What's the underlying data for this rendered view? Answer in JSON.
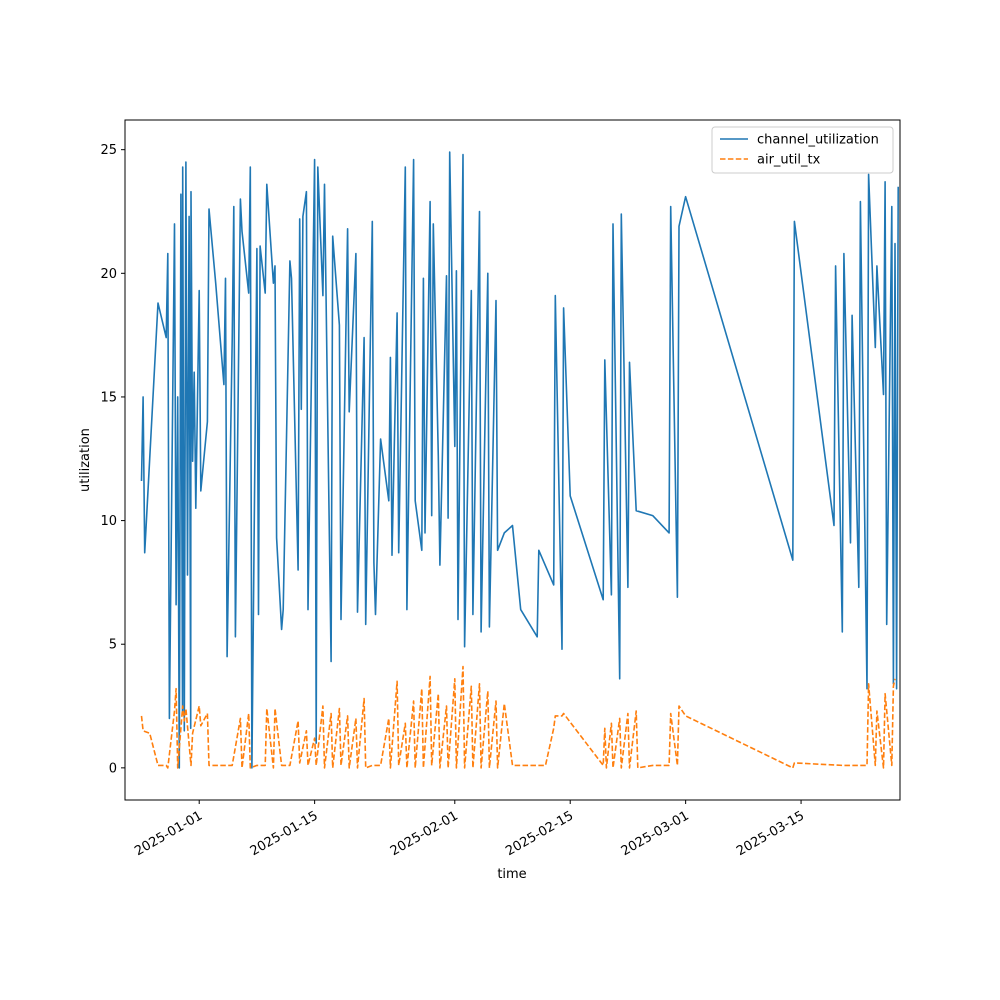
{
  "chart_data": {
    "type": "line",
    "title": "",
    "xlabel": "time",
    "ylabel": "utilization",
    "x_type": "date",
    "xlim": [
      "2024-12-23",
      "2025-03-27"
    ],
    "ylim": [
      -1.3,
      26.2
    ],
    "x_ticks": [
      "2025-01-01",
      "2025-01-15",
      "2025-02-01",
      "2025-02-15",
      "2025-03-01",
      "2025-03-15"
    ],
    "y_ticks": [
      0,
      5,
      10,
      15,
      20,
      25
    ],
    "grid": false,
    "legend": "top-right",
    "series": [
      {
        "name": "channel_utilization",
        "color": "#1f77b4",
        "style": "solid",
        "points": [
          [
            "2024-12-25",
            11.6
          ],
          [
            "2024-12-25",
            15.0
          ],
          [
            "2024-12-25",
            8.7
          ],
          [
            "2024-12-26",
            12.5
          ],
          [
            "2024-12-27",
            18.8
          ],
          [
            "2024-12-28",
            17.4
          ],
          [
            "2024-12-28",
            20.8
          ],
          [
            "2024-12-28",
            2.0
          ],
          [
            "2024-12-29",
            22.0
          ],
          [
            "2024-12-29",
            6.6
          ],
          [
            "2024-12-29",
            15.0
          ],
          [
            "2024-12-29",
            0.0
          ],
          [
            "2024-12-29",
            23.2
          ],
          [
            "2024-12-29",
            2.2
          ],
          [
            "2024-12-30",
            24.3
          ],
          [
            "2024-12-30",
            1.5
          ],
          [
            "2024-12-30",
            24.5
          ],
          [
            "2024-12-30",
            7.8
          ],
          [
            "2024-12-30",
            22.3
          ],
          [
            "2024-12-30",
            1.6
          ],
          [
            "2024-12-31",
            23.3
          ],
          [
            "2024-12-31",
            12.4
          ],
          [
            "2024-12-31",
            16.0
          ],
          [
            "2024-12-31",
            10.5
          ],
          [
            "2025-01-01",
            19.3
          ],
          [
            "2025-01-01",
            11.2
          ],
          [
            "2025-01-02",
            14.0
          ],
          [
            "2025-01-02",
            22.6
          ],
          [
            "2025-01-03",
            19.6
          ],
          [
            "2025-01-04",
            15.5
          ],
          [
            "2025-01-04",
            19.8
          ],
          [
            "2025-01-04",
            4.5
          ],
          [
            "2025-01-05",
            17.3
          ],
          [
            "2025-01-05",
            22.7
          ],
          [
            "2025-01-05",
            5.3
          ],
          [
            "2025-01-06",
            23.0
          ],
          [
            "2025-01-06",
            21.7
          ],
          [
            "2025-01-07",
            19.2
          ],
          [
            "2025-01-07",
            24.3
          ],
          [
            "2025-01-07",
            0.0
          ],
          [
            "2025-01-08",
            21.0
          ],
          [
            "2025-01-08",
            6.2
          ],
          [
            "2025-01-08",
            21.1
          ],
          [
            "2025-01-09",
            19.2
          ],
          [
            "2025-01-09",
            23.6
          ],
          [
            "2025-01-10",
            19.6
          ],
          [
            "2025-01-10",
            20.3
          ],
          [
            "2025-01-10",
            9.3
          ],
          [
            "2025-01-11",
            5.6
          ],
          [
            "2025-01-11",
            6.4
          ],
          [
            "2025-01-12",
            20.5
          ],
          [
            "2025-01-12",
            19.8
          ],
          [
            "2025-01-13",
            8.0
          ],
          [
            "2025-01-13",
            22.2
          ],
          [
            "2025-01-13",
            14.5
          ],
          [
            "2025-01-13",
            22.3
          ],
          [
            "2025-01-14",
            23.3
          ],
          [
            "2025-01-14",
            6.4
          ],
          [
            "2025-01-15",
            24.6
          ],
          [
            "2025-01-15",
            1.0
          ],
          [
            "2025-01-15",
            24.3
          ],
          [
            "2025-01-16",
            19.1
          ],
          [
            "2025-01-16",
            23.6
          ],
          [
            "2025-01-17",
            4.3
          ],
          [
            "2025-01-17",
            21.5
          ],
          [
            "2025-01-18",
            17.9
          ],
          [
            "2025-01-18",
            6.0
          ],
          [
            "2025-01-19",
            21.8
          ],
          [
            "2025-01-19",
            14.4
          ],
          [
            "2025-01-20",
            20.8
          ],
          [
            "2025-01-20",
            6.3
          ],
          [
            "2025-01-21",
            17.4
          ],
          [
            "2025-01-21",
            5.8
          ],
          [
            "2025-01-22",
            22.1
          ],
          [
            "2025-01-22",
            8.3
          ],
          [
            "2025-01-22",
            6.2
          ],
          [
            "2025-01-23",
            13.3
          ],
          [
            "2025-01-24",
            10.8
          ],
          [
            "2025-01-24",
            16.6
          ],
          [
            "2025-01-24",
            8.6
          ],
          [
            "2025-01-25",
            18.4
          ],
          [
            "2025-01-25",
            8.7
          ],
          [
            "2025-01-26",
            24.3
          ],
          [
            "2025-01-26",
            6.4
          ],
          [
            "2025-01-27",
            24.6
          ],
          [
            "2025-01-27",
            10.8
          ],
          [
            "2025-01-28",
            8.8
          ],
          [
            "2025-01-28",
            19.8
          ],
          [
            "2025-01-28",
            9.5
          ],
          [
            "2025-01-29",
            22.9
          ],
          [
            "2025-01-29",
            10.2
          ],
          [
            "2025-01-29",
            22.0
          ],
          [
            "2025-01-30",
            12.6
          ],
          [
            "2025-01-30",
            8.2
          ],
          [
            "2025-01-31",
            19.9
          ],
          [
            "2025-01-31",
            10.1
          ],
          [
            "2025-01-31",
            24.9
          ],
          [
            "2025-02-01",
            13.0
          ],
          [
            "2025-02-01",
            20.1
          ],
          [
            "2025-02-01",
            6.0
          ],
          [
            "2025-02-02",
            24.8
          ],
          [
            "2025-02-02",
            4.9
          ],
          [
            "2025-02-03",
            19.3
          ],
          [
            "2025-02-03",
            6.2
          ],
          [
            "2025-02-04",
            22.5
          ],
          [
            "2025-02-04",
            5.5
          ],
          [
            "2025-02-05",
            20.0
          ],
          [
            "2025-02-05",
            5.7
          ],
          [
            "2025-02-06",
            18.9
          ],
          [
            "2025-02-06",
            8.8
          ],
          [
            "2025-02-07",
            9.5
          ],
          [
            "2025-02-08",
            9.8
          ],
          [
            "2025-02-09",
            6.4
          ],
          [
            "2025-02-11",
            5.3
          ],
          [
            "2025-02-11",
            8.8
          ],
          [
            "2025-02-13",
            7.4
          ],
          [
            "2025-02-13",
            19.1
          ],
          [
            "2025-02-14",
            4.8
          ],
          [
            "2025-02-14",
            18.6
          ],
          [
            "2025-02-15",
            11.0
          ],
          [
            "2025-02-19",
            6.8
          ],
          [
            "2025-02-19",
            16.5
          ],
          [
            "2025-02-20",
            7.0
          ],
          [
            "2025-02-20",
            22.0
          ],
          [
            "2025-02-21",
            3.6
          ],
          [
            "2025-02-21",
            22.4
          ],
          [
            "2025-02-22",
            7.3
          ],
          [
            "2025-02-22",
            16.4
          ],
          [
            "2025-02-23",
            10.4
          ],
          [
            "2025-02-25",
            10.2
          ],
          [
            "2025-02-27",
            9.5
          ],
          [
            "2025-02-27",
            22.7
          ],
          [
            "2025-02-28",
            6.9
          ],
          [
            "2025-02-28",
            21.9
          ],
          [
            "2025-03-01",
            23.1
          ],
          [
            "2025-03-14",
            8.4
          ],
          [
            "2025-03-14",
            22.1
          ],
          [
            "2025-03-19",
            9.8
          ],
          [
            "2025-03-19",
            20.3
          ],
          [
            "2025-03-20",
            5.5
          ],
          [
            "2025-03-20",
            20.8
          ],
          [
            "2025-03-21",
            9.1
          ],
          [
            "2025-03-21",
            18.3
          ],
          [
            "2025-03-22",
            7.3
          ],
          [
            "2025-03-22",
            22.9
          ],
          [
            "2025-03-23",
            3.2
          ],
          [
            "2025-03-23",
            24.0
          ],
          [
            "2025-03-24",
            17.0
          ],
          [
            "2025-03-24",
            20.3
          ],
          [
            "2025-03-25",
            15.1
          ],
          [
            "2025-03-25",
            23.7
          ],
          [
            "2025-03-25",
            5.8
          ],
          [
            "2025-03-26",
            22.7
          ],
          [
            "2025-03-26",
            3.4
          ],
          [
            "2025-03-26",
            21.2
          ],
          [
            "2025-03-26",
            3.2
          ],
          [
            "2025-03-26",
            23.5
          ]
        ]
      },
      {
        "name": "air_util_tx",
        "color": "#ff7f0e",
        "style": "dashed",
        "points": [
          [
            "2024-12-25",
            2.1
          ],
          [
            "2024-12-25",
            1.5
          ],
          [
            "2024-12-26",
            1.4
          ],
          [
            "2024-12-27",
            0.1
          ],
          [
            "2024-12-28",
            0.1
          ],
          [
            "2024-12-28",
            0.0
          ],
          [
            "2024-12-29",
            2.3
          ],
          [
            "2024-12-29",
            3.2
          ],
          [
            "2024-12-29",
            0.0
          ],
          [
            "2024-12-30",
            2.5
          ],
          [
            "2024-12-30",
            1.9
          ],
          [
            "2024-12-30",
            2.4
          ],
          [
            "2024-12-31",
            0.1
          ],
          [
            "2024-12-31",
            1.4
          ],
          [
            "2025-01-01",
            2.5
          ],
          [
            "2025-01-01",
            1.7
          ],
          [
            "2025-01-02",
            2.2
          ],
          [
            "2025-01-02",
            0.1
          ],
          [
            "2025-01-04",
            0.1
          ],
          [
            "2025-01-05",
            0.1
          ],
          [
            "2025-01-06",
            2.0
          ],
          [
            "2025-01-06",
            0.0
          ],
          [
            "2025-01-07",
            2.2
          ],
          [
            "2025-01-07",
            0.0
          ],
          [
            "2025-01-08",
            0.1
          ],
          [
            "2025-01-09",
            0.1
          ],
          [
            "2025-01-09",
            2.4
          ],
          [
            "2025-01-10",
            0.0
          ],
          [
            "2025-01-10",
            2.4
          ],
          [
            "2025-01-11",
            0.1
          ],
          [
            "2025-01-12",
            0.1
          ],
          [
            "2025-01-13",
            1.9
          ],
          [
            "2025-01-13",
            0.2
          ],
          [
            "2025-01-14",
            1.5
          ],
          [
            "2025-01-14",
            0.1
          ],
          [
            "2025-01-15",
            1.2
          ],
          [
            "2025-01-15",
            0.1
          ],
          [
            "2025-01-16",
            2.5
          ],
          [
            "2025-01-16",
            0.0
          ],
          [
            "2025-01-17",
            2.2
          ],
          [
            "2025-01-17",
            0.0
          ],
          [
            "2025-01-18",
            2.4
          ],
          [
            "2025-01-18",
            0.1
          ],
          [
            "2025-01-19",
            2.1
          ],
          [
            "2025-01-19",
            0.0
          ],
          [
            "2025-01-20",
            2.0
          ],
          [
            "2025-01-20",
            0.0
          ],
          [
            "2025-01-21",
            2.8
          ],
          [
            "2025-01-21",
            0.0
          ],
          [
            "2025-01-22",
            0.1
          ],
          [
            "2025-01-23",
            0.1
          ],
          [
            "2025-01-24",
            2.0
          ],
          [
            "2025-01-24",
            0.0
          ],
          [
            "2025-01-25",
            3.5
          ],
          [
            "2025-01-25",
            0.1
          ],
          [
            "2025-01-26",
            1.8
          ],
          [
            "2025-01-26",
            0.0
          ],
          [
            "2025-01-27",
            2.7
          ],
          [
            "2025-01-27",
            0.0
          ],
          [
            "2025-01-28",
            3.2
          ],
          [
            "2025-01-28",
            0.0
          ],
          [
            "2025-01-29",
            3.7
          ],
          [
            "2025-01-29",
            0.1
          ],
          [
            "2025-01-30",
            3.0
          ],
          [
            "2025-01-30",
            0.0
          ],
          [
            "2025-01-31",
            2.5
          ],
          [
            "2025-01-31",
            0.0
          ],
          [
            "2025-02-01",
            3.6
          ],
          [
            "2025-02-01",
            0.0
          ],
          [
            "2025-02-02",
            4.1
          ],
          [
            "2025-02-02",
            0.0
          ],
          [
            "2025-02-03",
            3.3
          ],
          [
            "2025-02-03",
            0.0
          ],
          [
            "2025-02-04",
            3.4
          ],
          [
            "2025-02-04",
            0.0
          ],
          [
            "2025-02-05",
            3.1
          ],
          [
            "2025-02-05",
            0.0
          ],
          [
            "2025-02-06",
            2.7
          ],
          [
            "2025-02-06",
            0.0
          ],
          [
            "2025-02-07",
            2.6
          ],
          [
            "2025-02-08",
            0.1
          ],
          [
            "2025-02-10",
            0.1
          ],
          [
            "2025-02-12",
            0.1
          ],
          [
            "2025-02-13",
            1.6
          ],
          [
            "2025-02-13",
            2.1
          ],
          [
            "2025-02-14",
            2.1
          ],
          [
            "2025-02-14",
            2.2
          ],
          [
            "2025-02-19",
            0.1
          ],
          [
            "2025-02-19",
            1.6
          ],
          [
            "2025-02-19",
            0.0
          ],
          [
            "2025-02-20",
            1.8
          ],
          [
            "2025-02-20",
            0.0
          ],
          [
            "2025-02-21",
            2.0
          ],
          [
            "2025-02-21",
            0.0
          ],
          [
            "2025-02-22",
            2.2
          ],
          [
            "2025-02-22",
            0.0
          ],
          [
            "2025-02-23",
            2.3
          ],
          [
            "2025-02-23",
            0.0
          ],
          [
            "2025-02-25",
            0.1
          ],
          [
            "2025-02-27",
            0.1
          ],
          [
            "2025-02-27",
            2.2
          ],
          [
            "2025-02-28",
            0.1
          ],
          [
            "2025-02-28",
            2.5
          ],
          [
            "2025-03-01",
            2.1
          ],
          [
            "2025-03-14",
            0.0
          ],
          [
            "2025-03-14",
            0.2
          ],
          [
            "2025-03-20",
            0.1
          ],
          [
            "2025-03-22",
            0.1
          ],
          [
            "2025-03-23",
            0.1
          ],
          [
            "2025-03-23",
            3.4
          ],
          [
            "2025-03-24",
            0.1
          ],
          [
            "2025-03-24",
            2.3
          ],
          [
            "2025-03-25",
            0.0
          ],
          [
            "2025-03-25",
            3.0
          ],
          [
            "2025-03-26",
            0.1
          ],
          [
            "2025-03-26",
            3.3
          ],
          [
            "2025-03-26",
            3.6
          ]
        ]
      }
    ]
  }
}
